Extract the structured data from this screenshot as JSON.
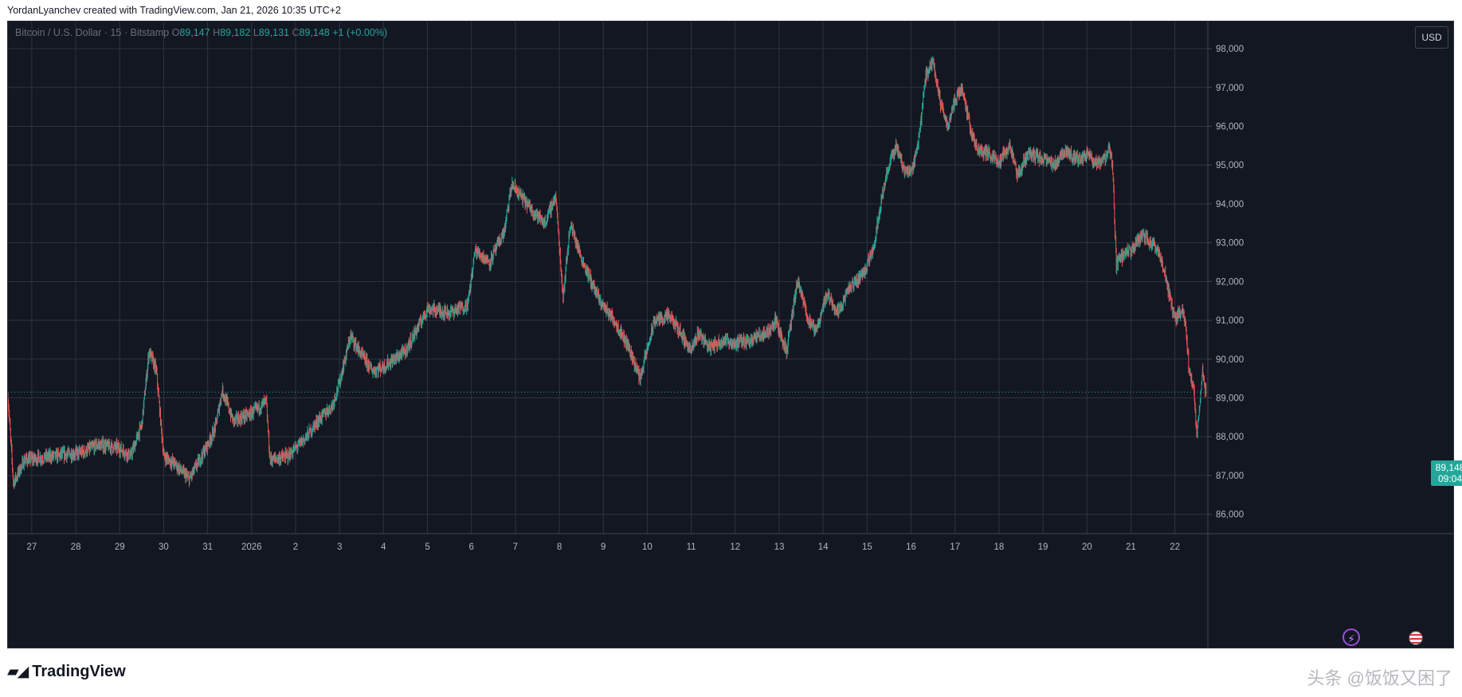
{
  "credit": "YordanLyanchev created with TradingView.com, Jan 21, 2026 10:35 UTC+2",
  "legend": {
    "symbol": "Bitcoin / U.S. Dollar · 15 · Bitstamp",
    "open_label": "O",
    "open": "89,147",
    "high_label": "H",
    "high": "89,182",
    "low_label": "L",
    "low": "89,131",
    "close_label": "C",
    "close": "89,148",
    "change": "+1 (+0.00%)"
  },
  "currency_button": "USD",
  "price_tag": {
    "price": "89,148",
    "countdown": "09:04"
  },
  "brand": "TradingView",
  "watermark": "头条 @饭饭又困了",
  "icons": [
    "flash-icon",
    "us-flag-icon",
    "tradingview-logo-icon"
  ],
  "colors": {
    "background": "#131722",
    "grid": "#2f3340",
    "up": "#26a69a",
    "down": "#ef5350",
    "axis_text": "#b2b5be",
    "last_price_line": "#26a69a"
  },
  "chart_data": {
    "type": "candlestick",
    "title": "Bitcoin / U.S. Dollar · 15 · Bitstamp",
    "xlabel": "",
    "ylabel": "",
    "ylim": [
      85500,
      98700
    ],
    "y_ticks": [
      86000,
      87000,
      88000,
      89000,
      90000,
      91000,
      92000,
      93000,
      94000,
      95000,
      96000,
      97000,
      98000
    ],
    "y_tick_labels": [
      "86,000",
      "87,000",
      "88,000",
      "89,000",
      "90,000",
      "91,000",
      "92,000",
      "93,000",
      "94,000",
      "95,000",
      "96,000",
      "97,000",
      "98,000"
    ],
    "x_ticks": [
      "2025-12-27",
      "2025-12-28",
      "2025-12-29",
      "2025-12-30",
      "2025-12-31",
      "2026-01-01",
      "2026-01-02",
      "2026-01-03",
      "2026-01-04",
      "2026-01-05",
      "2026-01-06",
      "2026-01-07",
      "2026-01-08",
      "2026-01-09",
      "2026-01-10",
      "2026-01-11",
      "2026-01-12",
      "2026-01-13",
      "2026-01-14",
      "2026-01-15",
      "2026-01-16",
      "2026-01-17",
      "2026-01-18",
      "2026-01-19",
      "2026-01-20",
      "2026-01-21",
      "2026-01-22"
    ],
    "x_tick_labels": [
      "27",
      "28",
      "29",
      "30",
      "31",
      "2026",
      "2",
      "3",
      "4",
      "5",
      "6",
      "7",
      "8",
      "9",
      "10",
      "11",
      "12",
      "13",
      "14",
      "15",
      "16",
      "17",
      "18",
      "19",
      "20",
      "21",
      "22"
    ],
    "x_range": [
      "2025-12-26 11:00",
      "2026-01-22 18:00"
    ],
    "last_price": 89148,
    "grid": true,
    "price_path": {
      "description_units": "time, price",
      "points": [
        [
          "2025-12-26 11:00",
          89000
        ],
        [
          "2025-12-26 14:00",
          86800
        ],
        [
          "2025-12-26 20:00",
          87400
        ],
        [
          "2025-12-27 12:00",
          87500
        ],
        [
          "2025-12-28 04:00",
          87600
        ],
        [
          "2025-12-28 12:00",
          87800
        ],
        [
          "2025-12-29 00:00",
          87700
        ],
        [
          "2025-12-29 06:00",
          87500
        ],
        [
          "2025-12-29 12:00",
          88300
        ],
        [
          "2025-12-29 16:00",
          90200
        ],
        [
          "2025-12-29 20:00",
          89700
        ],
        [
          "2025-12-30 00:00",
          87500
        ],
        [
          "2025-12-30 06:00",
          87300
        ],
        [
          "2025-12-30 14:00",
          86900
        ],
        [
          "2025-12-31 00:00",
          87800
        ],
        [
          "2025-12-31 04:00",
          88200
        ],
        [
          "2025-12-31 08:00",
          89200
        ],
        [
          "2025-12-31 14:00",
          88400
        ],
        [
          "2026-01-01 00:00",
          88600
        ],
        [
          "2026-01-01 08:00",
          88900
        ],
        [
          "2026-01-01 10:00",
          87400
        ],
        [
          "2026-01-01 20:00",
          87500
        ],
        [
          "2026-01-02 06:00",
          88000
        ],
        [
          "2026-01-02 12:00",
          88400
        ],
        [
          "2026-01-02 20:00",
          88800
        ],
        [
          "2026-01-03 00:00",
          89400
        ],
        [
          "2026-01-03 06:00",
          90600
        ],
        [
          "2026-01-03 12:00",
          90100
        ],
        [
          "2026-01-03 18:00",
          89700
        ],
        [
          "2026-01-04 00:00",
          89800
        ],
        [
          "2026-01-04 12:00",
          90200
        ],
        [
          "2026-01-05 00:00",
          91300
        ],
        [
          "2026-01-05 12:00",
          91200
        ],
        [
          "2026-01-05 22:00",
          91400
        ],
        [
          "2026-01-06 02:00",
          92800
        ],
        [
          "2026-01-06 10:00",
          92500
        ],
        [
          "2026-01-06 18:00",
          93300
        ],
        [
          "2026-01-06 22:00",
          94500
        ],
        [
          "2026-01-07 08:00",
          93900
        ],
        [
          "2026-01-07 16:00",
          93500
        ],
        [
          "2026-01-07 22:00",
          94200
        ],
        [
          "2026-01-08 02:00",
          91600
        ],
        [
          "2026-01-08 06:00",
          93500
        ],
        [
          "2026-01-08 12:00",
          92600
        ],
        [
          "2026-01-08 22:00",
          91500
        ],
        [
          "2026-01-09 06:00",
          91000
        ],
        [
          "2026-01-09 14:00",
          90300
        ],
        [
          "2026-01-09 20:00",
          89500
        ],
        [
          "2026-01-10 04:00",
          91000
        ],
        [
          "2026-01-10 12:00",
          91100
        ],
        [
          "2026-01-10 18:00",
          90700
        ],
        [
          "2026-01-11 00:00",
          90200
        ],
        [
          "2026-01-11 04:00",
          90700
        ],
        [
          "2026-01-11 10:00",
          90300
        ],
        [
          "2026-01-11 18:00",
          90500
        ],
        [
          "2026-01-12 00:00",
          90400
        ],
        [
          "2026-01-12 08:00",
          90500
        ],
        [
          "2026-01-12 18:00",
          90700
        ],
        [
          "2026-01-12 22:00",
          91000
        ],
        [
          "2026-01-13 04:00",
          90200
        ],
        [
          "2026-01-13 10:00",
          92000
        ],
        [
          "2026-01-13 16:00",
          91000
        ],
        [
          "2026-01-13 20:00",
          90700
        ],
        [
          "2026-01-14 02:00",
          91700
        ],
        [
          "2026-01-14 08:00",
          91200
        ],
        [
          "2026-01-14 14:00",
          91800
        ],
        [
          "2026-01-14 20:00",
          92100
        ],
        [
          "2026-01-15 00:00",
          92400
        ],
        [
          "2026-01-15 04:00",
          93000
        ],
        [
          "2026-01-15 08:00",
          94200
        ],
        [
          "2026-01-15 12:00",
          95000
        ],
        [
          "2026-01-15 16:00",
          95500
        ],
        [
          "2026-01-15 20:00",
          94900
        ],
        [
          "2026-01-16 00:00",
          94800
        ],
        [
          "2026-01-16 04:00",
          95600
        ],
        [
          "2026-01-16 08:00",
          97300
        ],
        [
          "2026-01-16 12:00",
          97700
        ],
        [
          "2026-01-16 16:00",
          96600
        ],
        [
          "2026-01-16 20:00",
          96000
        ],
        [
          "2026-01-17 00:00",
          96700
        ],
        [
          "2026-01-17 04:00",
          97000
        ],
        [
          "2026-01-17 08:00",
          96000
        ],
        [
          "2026-01-17 12:00",
          95400
        ],
        [
          "2026-01-17 18:00",
          95300
        ],
        [
          "2026-01-18 00:00",
          95100
        ],
        [
          "2026-01-18 06:00",
          95500
        ],
        [
          "2026-01-18 10:00",
          94700
        ],
        [
          "2026-01-18 16:00",
          95300
        ],
        [
          "2026-01-18 22:00",
          95200
        ],
        [
          "2026-01-19 06:00",
          95000
        ],
        [
          "2026-01-19 12:00",
          95400
        ],
        [
          "2026-01-19 20:00",
          95100
        ],
        [
          "2026-01-20 00:00",
          95300
        ],
        [
          "2026-01-20 06:00",
          95000
        ],
        [
          "2026-01-20 10:00",
          95200
        ],
        [
          "2026-01-20 12:00",
          95400
        ],
        [
          "2026-01-20 14:00",
          95000
        ],
        [
          "2026-01-20 16:00",
          92400
        ],
        [
          "2026-01-20 18:00",
          92600
        ],
        [
          "2026-01-21 00:00",
          92800
        ],
        [
          "2026-01-21 06:00",
          93200
        ],
        [
          "2026-01-21 14:00",
          92900
        ],
        [
          "2026-01-21 18:00",
          92300
        ],
        [
          "2026-01-22 00:00",
          91000
        ],
        [
          "2026-01-22 04:00",
          91300
        ],
        [
          "2026-01-22 06:00",
          90800
        ],
        [
          "2026-01-22 08:00",
          89600
        ],
        [
          "2026-01-22 10:00",
          89400
        ],
        [
          "2026-01-22 12:00",
          88000
        ],
        [
          "2026-01-22 14:00",
          89000
        ],
        [
          "2026-01-22 15:00",
          89800
        ],
        [
          "2026-01-22 16:00",
          89300
        ],
        [
          "2026-01-22 17:00",
          89148
        ]
      ]
    }
  }
}
